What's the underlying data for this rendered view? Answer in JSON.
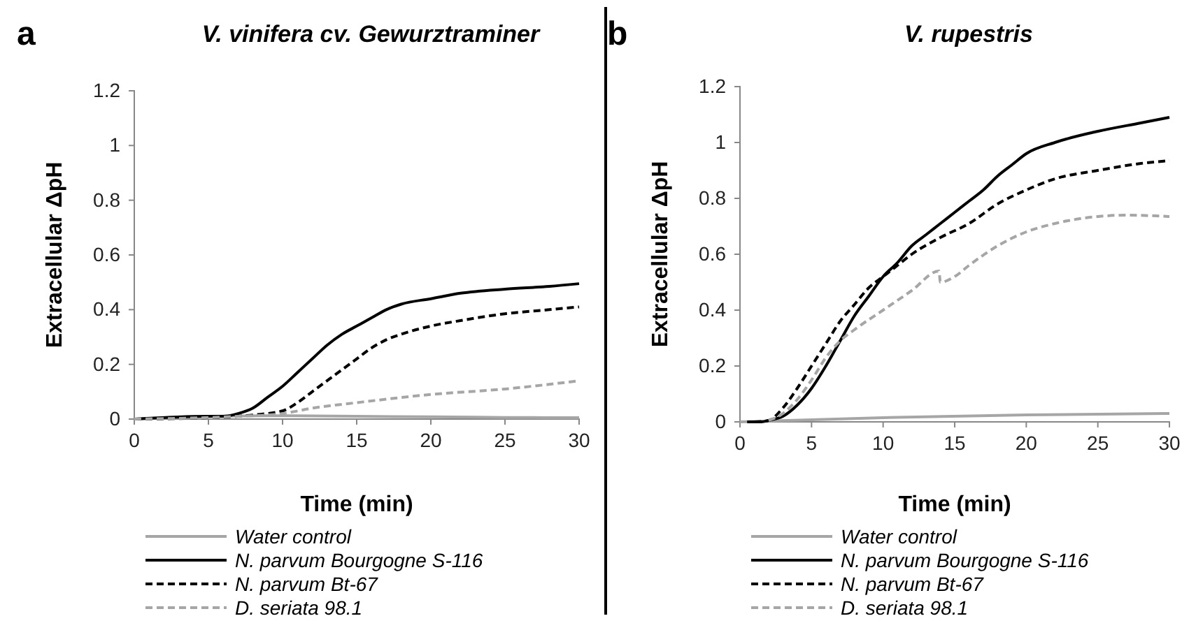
{
  "chart_data": [
    {
      "type": "line",
      "title": "V. vinifera cv. Gewurztraminer",
      "xlabel": "Time (min)",
      "ylabel": "Extracellular ΔpH",
      "annotations": [
        "a"
      ],
      "xlim": [
        0,
        30
      ],
      "xticks": [
        0,
        5,
        10,
        15,
        20,
        25,
        30
      ],
      "ylim": [
        0,
        1.2
      ],
      "yticks": [
        0,
        0.2,
        0.4,
        0.6,
        0.8,
        1,
        1.2
      ],
      "grid": false,
      "legend": "bottom",
      "series": [
        {
          "name": "Water control",
          "color": "#a6a6a6",
          "line_style": "solid",
          "x": [
            0,
            5,
            10,
            15,
            20,
            25,
            30
          ],
          "values": [
            0,
            0.01,
            0.012,
            0.01,
            0.008,
            0.006,
            0.005
          ]
        },
        {
          "name": "N. parvum Bourgogne S-116",
          "color": "#000000",
          "line_style": "solid",
          "x": [
            0,
            5,
            6,
            7,
            8,
            9,
            10,
            11,
            12,
            13,
            14,
            15,
            16,
            17,
            18,
            20,
            22,
            25,
            28,
            30
          ],
          "values": [
            0,
            0.01,
            0.01,
            0.02,
            0.04,
            0.08,
            0.12,
            0.17,
            0.22,
            0.27,
            0.31,
            0.34,
            0.37,
            0.4,
            0.42,
            0.44,
            0.46,
            0.475,
            0.485,
            0.495
          ]
        },
        {
          "name": "N. parvum Bt-67",
          "color": "#000000",
          "line_style": "dashed",
          "x": [
            0,
            5,
            8,
            10,
            11,
            12,
            13,
            14,
            15,
            16,
            17,
            18,
            20,
            22,
            25,
            28,
            30
          ],
          "values": [
            0,
            0.005,
            0.015,
            0.03,
            0.06,
            0.1,
            0.14,
            0.18,
            0.22,
            0.26,
            0.29,
            0.31,
            0.34,
            0.36,
            0.385,
            0.4,
            0.41
          ]
        },
        {
          "name": "D. seriata 98.1",
          "color": "#a6a6a6",
          "line_style": "dashed",
          "x": [
            0,
            7,
            10,
            12,
            15,
            20,
            25,
            30
          ],
          "values": [
            0,
            0.01,
            0.02,
            0.04,
            0.06,
            0.09,
            0.11,
            0.14
          ]
        }
      ]
    },
    {
      "type": "line",
      "title": "V. rupestris",
      "xlabel": "Time (min)",
      "ylabel": "Extracellular ΔpH",
      "annotations": [
        "b"
      ],
      "xlim": [
        0,
        30
      ],
      "xticks": [
        0,
        5,
        10,
        15,
        20,
        25,
        30
      ],
      "ylim": [
        0,
        1.2
      ],
      "yticks": [
        0,
        0.2,
        0.4,
        0.6,
        0.8,
        1,
        1.2
      ],
      "grid": false,
      "legend": "bottom",
      "series": [
        {
          "name": "Water control",
          "color": "#a6a6a6",
          "line_style": "solid",
          "x": [
            0,
            10,
            20,
            30
          ],
          "values": [
            0,
            0.015,
            0.025,
            0.03
          ]
        },
        {
          "name": "N. parvum Bourgogne S-116",
          "color": "#000000",
          "line_style": "solid",
          "x": [
            0.5,
            1.5,
            2,
            3,
            4,
            5,
            6,
            7,
            8,
            9,
            10,
            11,
            12,
            13,
            14,
            15,
            16,
            17,
            18,
            19,
            20,
            22,
            25,
            28,
            30
          ],
          "values": [
            0,
            0,
            0.005,
            0.02,
            0.06,
            0.12,
            0.2,
            0.29,
            0.38,
            0.45,
            0.52,
            0.57,
            0.63,
            0.67,
            0.71,
            0.75,
            0.79,
            0.83,
            0.88,
            0.92,
            0.96,
            1,
            1.04,
            1.07,
            1.09
          ]
        },
        {
          "name": "N. parvum Bt-67",
          "color": "#000000",
          "line_style": "dashed",
          "x": [
            1,
            2,
            3,
            4,
            5,
            6,
            7,
            8,
            9,
            10,
            11,
            12,
            14,
            16,
            18,
            20,
            22,
            25,
            28,
            30
          ],
          "values": [
            0,
            0.005,
            0.05,
            0.12,
            0.2,
            0.28,
            0.36,
            0.42,
            0.48,
            0.52,
            0.56,
            0.6,
            0.66,
            0.71,
            0.78,
            0.83,
            0.87,
            0.9,
            0.925,
            0.935
          ]
        },
        {
          "name": "D. seriata 98.1",
          "color": "#a6a6a6",
          "line_style": "dashed",
          "x": [
            2,
            3,
            4,
            5,
            6,
            7,
            8,
            10,
            12,
            13.9,
            14,
            15,
            16,
            18,
            20,
            22,
            25,
            27,
            30
          ],
          "values": [
            0.005,
            0.03,
            0.08,
            0.15,
            0.23,
            0.29,
            0.33,
            0.4,
            0.47,
            0.54,
            0.5,
            0.52,
            0.56,
            0.63,
            0.68,
            0.71,
            0.735,
            0.74,
            0.735
          ]
        }
      ]
    }
  ]
}
